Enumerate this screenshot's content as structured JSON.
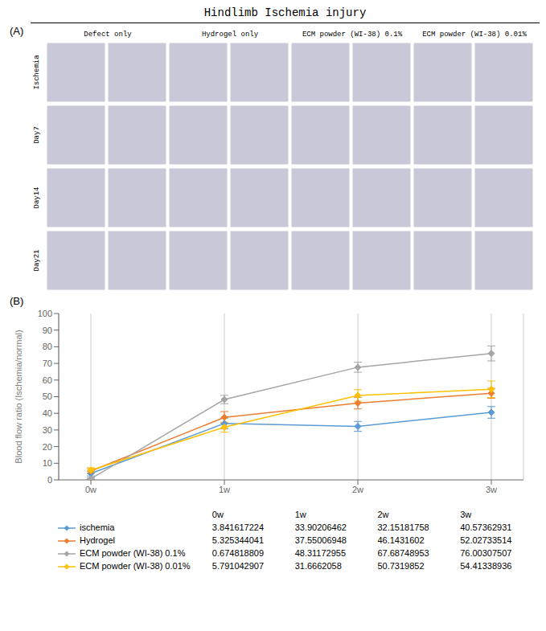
{
  "chart_data": {
    "type": "line",
    "title": "Hindlimb Ischemia injury",
    "annotations": {
      "panels": [
        "(A)",
        "(B)"
      ],
      "columns": [
        "Defect only",
        "Hydrogel only",
        "ECM powder (WI-38) 0.1%",
        "ECM powder (WI-38) 0.01%"
      ],
      "rows": [
        "Ischemia",
        "Day7",
        "Day14",
        "Day21"
      ]
    },
    "categories": [
      "0w",
      "1w",
      "2w",
      "3w"
    ],
    "y_label": "Blood flow ratio (Ischemia/normal)",
    "ylim": [
      0,
      100
    ],
    "yticks": [
      0,
      10,
      20,
      30,
      40,
      50,
      60,
      70,
      80,
      90,
      100
    ],
    "grid": "x",
    "marker": "diamond",
    "legend": "bottom",
    "series": [
      {
        "name": "ischemia",
        "color": "#5B9BD5",
        "values": [
          3.841617224,
          33.90206462,
          32.15181758,
          40.57362931
        ],
        "errors": [
          1.5,
          3.2,
          3.0,
          3.5
        ]
      },
      {
        "name": "Hydrogel",
        "color": "#ED7D31",
        "values": [
          5.325344041,
          37.55006948,
          46.1431602,
          52.02733514
        ],
        "errors": [
          1.5,
          3.5,
          3.5,
          3.0
        ]
      },
      {
        "name": "ECM powder (WI-38) 0.1%",
        "color": "#A5A5A5",
        "values": [
          0.674818809,
          48.31172955,
          67.68748953,
          76.00307507
        ],
        "errors": [
          0.5,
          2.5,
          3.0,
          4.5
        ]
      },
      {
        "name": "ECM powder (WI-38) 0.01%",
        "color": "#FFC000",
        "values": [
          5.791042907,
          31.6662058,
          50.7319852,
          54.41338936
        ],
        "errors": [
          1.5,
          3.0,
          3.5,
          5.0
        ]
      }
    ]
  }
}
